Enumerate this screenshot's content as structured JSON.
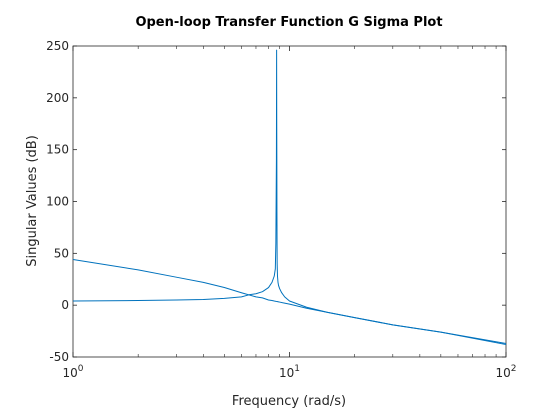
{
  "chart_data": {
    "type": "line",
    "title": "Open-loop Transfer Function G Sigma Plot",
    "xlabel": "Frequency (rad/s)",
    "ylabel": "Singular Values (dB)",
    "xscale": "log",
    "xlim": [
      1,
      100
    ],
    "ylim": [
      -50,
      250
    ],
    "x_ticks": [
      {
        "value": 1,
        "base": "10",
        "exp": "0"
      },
      {
        "value": 10,
        "base": "10",
        "exp": "1"
      },
      {
        "value": 100,
        "base": "10",
        "exp": "2"
      }
    ],
    "y_ticks": [
      -50,
      0,
      50,
      100,
      150,
      200,
      250
    ],
    "grid": false,
    "line_color": "#0072bd",
    "series": [
      {
        "x": [
          1,
          2,
          3,
          4,
          5,
          6,
          7,
          7.5,
          8,
          8.3,
          8.5,
          8.6,
          8.7,
          8.75,
          8.8,
          8.85,
          8.9,
          9.0,
          9.3,
          10,
          12,
          15,
          20,
          30,
          50,
          100
        ],
        "y": [
          44,
          34,
          27,
          22,
          17,
          12,
          8,
          7,
          5,
          4.5,
          4,
          3.8,
          3.6,
          3.5,
          3.4,
          3.3,
          3.2,
          3,
          2.3,
          1,
          -3,
          -7,
          -12,
          -19,
          -26,
          -37
        ]
      },
      {
        "x": [
          1,
          2,
          3,
          4,
          5,
          6,
          6.5,
          7,
          7.5,
          8,
          8.3,
          8.5,
          8.6,
          8.65,
          8.7,
          8.72,
          8.73,
          8.74,
          8.75,
          8.76,
          8.77,
          8.8,
          8.85,
          8.9,
          9.0,
          9.2,
          9.5,
          10,
          12,
          15,
          20,
          30,
          50,
          100
        ],
        "y": [
          4,
          4.5,
          5,
          5.5,
          6.5,
          8,
          10,
          11,
          13,
          17,
          22,
          28,
          35,
          60,
          140,
          246,
          180,
          140,
          90,
          60,
          40,
          28,
          22,
          19,
          16,
          12,
          8,
          4,
          -2,
          -7,
          -12,
          -19,
          -26,
          -38
        ]
      }
    ]
  }
}
